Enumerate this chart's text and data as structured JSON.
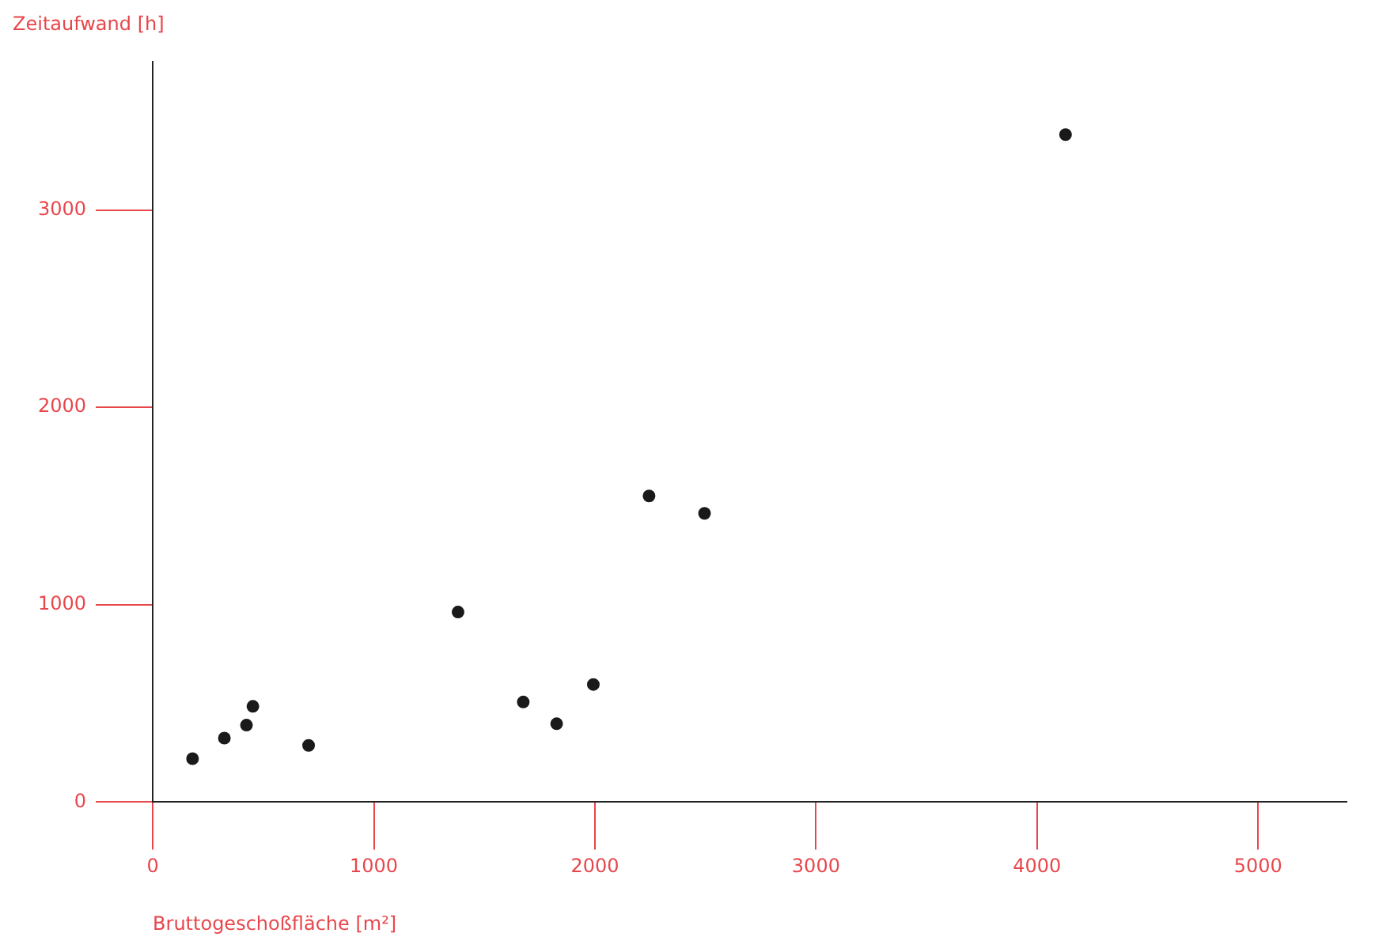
{
  "chart_data": {
    "type": "scatter",
    "xlabel": "Bruttogeschoßfläche [m²]",
    "ylabel": "Zeitaufwand [h]",
    "x": [
      180,
      324,
      424,
      453,
      705,
      1381,
      1676,
      1827,
      1993,
      2245,
      2496,
      4129
    ],
    "values": [
      220,
      324,
      390,
      485,
      287,
      963,
      507,
      397,
      596,
      1551,
      1463,
      3382
    ],
    "color": "#1a1a1a",
    "marker": "circle",
    "grid": false,
    "legend": false,
    "xlim": [
      0,
      5400
    ],
    "ylim": [
      0,
      3750
    ],
    "xticks": [
      0,
      1000,
      2000,
      3000,
      4000,
      5000
    ],
    "yticks": [
      0,
      1000,
      2000,
      3000
    ]
  }
}
